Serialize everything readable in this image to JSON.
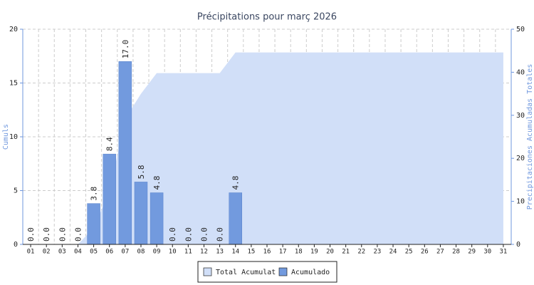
{
  "chart_data": {
    "type": "bar",
    "title": "Précipitations pour març 2026",
    "categories": [
      "01",
      "02",
      "03",
      "04",
      "05",
      "06",
      "07",
      "08",
      "09",
      "10",
      "11",
      "12",
      "13",
      "14",
      "15",
      "16",
      "17",
      "18",
      "19",
      "20",
      "21",
      "22",
      "23",
      "24",
      "25",
      "26",
      "27",
      "28",
      "29",
      "30",
      "31"
    ],
    "series": [
      {
        "name": "Total Acumulat",
        "type": "area",
        "axis": "y2",
        "color": "#d1dff8",
        "values": [
          0,
          0,
          0,
          0,
          3.8,
          12.2,
          29.2,
          35,
          39.8,
          39.8,
          39.8,
          39.8,
          39.8,
          44.6,
          44.6,
          44.6,
          44.6,
          44.6,
          44.6,
          44.6,
          44.6,
          44.6,
          44.6,
          44.6,
          44.6,
          44.6,
          44.6,
          44.6,
          44.6,
          44.6,
          44.6
        ]
      },
      {
        "name": "Acumulado",
        "type": "bar",
        "color": "#729ade",
        "values": [
          0,
          0,
          0,
          0,
          3.8,
          8.4,
          17,
          5.8,
          4.8,
          0,
          0,
          0,
          0,
          4.8,
          null,
          null,
          null,
          null,
          null,
          null,
          null,
          null,
          null,
          null,
          null,
          null,
          null,
          null,
          null,
          null,
          null
        ],
        "value_labels": [
          "0.0",
          "0.0",
          "0.0",
          "0.0",
          "3.8",
          "8.4",
          "17.0",
          "5.8",
          "4.8",
          "0.0",
          "0.0",
          "0.0",
          "0.0",
          "4.8",
          null,
          null,
          null,
          null,
          null,
          null,
          null,
          null,
          null,
          null,
          null,
          null,
          null,
          null,
          null,
          null,
          null
        ]
      }
    ],
    "ylabel": "Cumuls",
    "y2label": "Precipitaciones Acumuladas Totales",
    "ylim": [
      0,
      20
    ],
    "yticks": [
      0,
      5,
      10,
      15,
      20
    ],
    "y2lim": [
      0,
      50
    ],
    "y2ticks": [
      0,
      10,
      20,
      30,
      40,
      50
    ],
    "grid": true,
    "legend": "bottom"
  }
}
